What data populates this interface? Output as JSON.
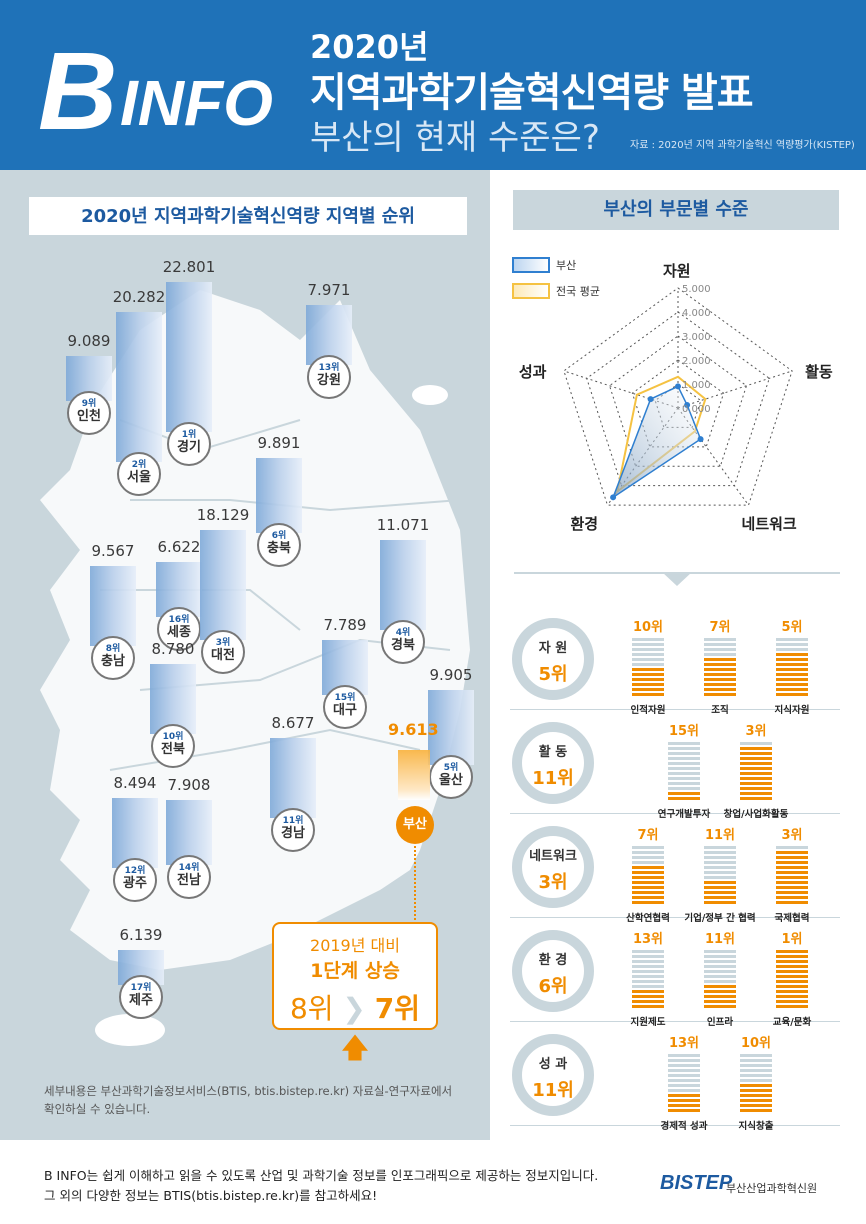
{
  "header": {
    "logo_b": "B",
    "logo_info": "INFO",
    "year": "2020년",
    "title": "지역과학기술혁신역량 발표",
    "subtitle": "부산의 현재 수준은?",
    "source": "자료 : 2020년 지역 과학기술혁신 역량평가(KISTEP)"
  },
  "left_title": "2020년 지역과학기술혁신역량 지역별 순위",
  "right_title": "부산의 부문별 수준",
  "regions": [
    {
      "name": "인천",
      "rank": "9위",
      "value": "9.089"
    },
    {
      "name": "서울",
      "rank": "2위",
      "value": "20.282"
    },
    {
      "name": "경기",
      "rank": "1위",
      "value": "22.801"
    },
    {
      "name": "강원",
      "rank": "13위",
      "value": "7.971"
    },
    {
      "name": "충북",
      "rank": "6위",
      "value": "9.891"
    },
    {
      "name": "세종",
      "rank": "16위",
      "value": "6.622"
    },
    {
      "name": "대전",
      "rank": "3위",
      "value": "18.129"
    },
    {
      "name": "충남",
      "rank": "8위",
      "value": "9.567"
    },
    {
      "name": "경북",
      "rank": "4위",
      "value": "11.071"
    },
    {
      "name": "대구",
      "rank": "15위",
      "value": "7.789"
    },
    {
      "name": "전북",
      "rank": "10위",
      "value": "8.780"
    },
    {
      "name": "울산",
      "rank": "5위",
      "value": "9.905"
    },
    {
      "name": "경남",
      "rank": "11위",
      "value": "8.677"
    },
    {
      "name": "광주",
      "rank": "12위",
      "value": "8.494"
    },
    {
      "name": "전남",
      "rank": "14위",
      "value": "7.908"
    },
    {
      "name": "제주",
      "rank": "17위",
      "value": "6.139"
    }
  ],
  "busan": {
    "label": "부산",
    "value": "9.613"
  },
  "callout": {
    "line1": "2019년 대비",
    "line2": "1단계 상승",
    "from": "8위",
    "to": "7위"
  },
  "note": "세부내용은 부산과학기술정보서비스(BTIS, btis.bistep.re.kr) 자료실-연구자료에서 확인하실 수 있습니다.",
  "legend": {
    "busan": "부산",
    "national": "전국 평균"
  },
  "radar": {
    "axes": [
      "자원",
      "활동",
      "네트워크",
      "환경",
      "성과"
    ],
    "ticks": [
      "0.000",
      "1.000",
      "2.000",
      "3.000",
      "4.000",
      "5.000"
    ],
    "busan": [
      0.9,
      0.4,
      1.6,
      4.6,
      1.2
    ],
    "national": [
      1.3,
      1.2,
      1.2,
      4.3,
      1.8
    ],
    "colors": {
      "busan": "#2f7fd0",
      "national": "#f5c242"
    }
  },
  "categories": [
    {
      "name": "자 원",
      "rank": "5위",
      "items": [
        {
          "label": "인적자원",
          "rank": "10위",
          "value": 10
        },
        {
          "label": "조직",
          "rank": "7위",
          "value": 7
        },
        {
          "label": "지식자원",
          "rank": "5위",
          "value": 5
        }
      ]
    },
    {
      "name": "활 동",
      "rank": "11위",
      "items": [
        {
          "label": "연구개발투자",
          "rank": "15위",
          "value": 15
        },
        {
          "label": "창업/사업화활동",
          "rank": "3위",
          "value": 3
        }
      ]
    },
    {
      "name": "네트워크",
      "rank": "3위",
      "items": [
        {
          "label": "산학연협력",
          "rank": "7위",
          "value": 7
        },
        {
          "label": "기업/정부 간 협력",
          "rank": "11위",
          "value": 11
        },
        {
          "label": "국제협력",
          "rank": "3위",
          "value": 3
        }
      ]
    },
    {
      "name": "환 경",
      "rank": "6위",
      "items": [
        {
          "label": "지원제도",
          "rank": "13위",
          "value": 13
        },
        {
          "label": "인프라",
          "rank": "11위",
          "value": 11
        },
        {
          "label": "교육/문화",
          "rank": "1위",
          "value": 1
        }
      ]
    },
    {
      "name": "성 과",
      "rank": "11위",
      "items": [
        {
          "label": "경제적 성과",
          "rank": "13위",
          "value": 13
        },
        {
          "label": "지식창출",
          "rank": "10위",
          "value": 10
        }
      ]
    }
  ],
  "footer": {
    "line1": "B INFO는 쉽게 이해하고 읽을 수 있도록 산업 및 과학기술 정보를 인포그래픽으로 제공하는 정보지입니다.",
    "line2": "그 외의 다양한 정보는 BTIS(btis.bistep.re.kr)를 참고하세요!",
    "logo": "BISTEP",
    "org": "부산산업과학혁신원"
  }
}
